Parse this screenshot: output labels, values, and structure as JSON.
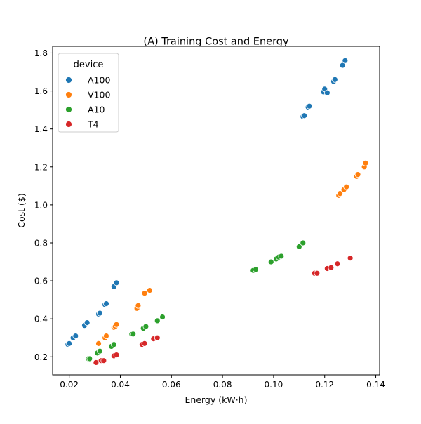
{
  "chart_data": {
    "type": "scatter",
    "title": "(A) Training Cost and Energy",
    "xlabel": "Energy (kW·h)",
    "ylabel": "Cost ($)",
    "xlim": [
      0.0135,
      0.1415
    ],
    "ylim": [
      0.105,
      1.835
    ],
    "xticks": [
      0.02,
      0.04,
      0.06,
      0.08,
      0.1,
      0.12,
      0.14
    ],
    "xtick_labels": [
      "0.02",
      "0.04",
      "0.06",
      "0.08",
      "0.10",
      "0.12",
      "0.14"
    ],
    "yticks": [
      0.2,
      0.4,
      0.6,
      0.8,
      1.0,
      1.2,
      1.4,
      1.6,
      1.8
    ],
    "ytick_labels": [
      "0.2",
      "0.4",
      "0.6",
      "0.8",
      "1.0",
      "1.2",
      "1.4",
      "1.6",
      "1.8"
    ],
    "grid": false,
    "legend": {
      "title": "device",
      "position": "top-left"
    },
    "series": [
      {
        "name": "A100",
        "color": "#1f77b4",
        "points": [
          [
            0.0195,
            0.265
          ],
          [
            0.02,
            0.27
          ],
          [
            0.0215,
            0.3
          ],
          [
            0.0225,
            0.31
          ],
          [
            0.026,
            0.365
          ],
          [
            0.027,
            0.38
          ],
          [
            0.0315,
            0.425
          ],
          [
            0.032,
            0.43
          ],
          [
            0.034,
            0.475
          ],
          [
            0.0345,
            0.48
          ],
          [
            0.0375,
            0.57
          ],
          [
            0.0385,
            0.59
          ],
          [
            0.1115,
            1.465
          ],
          [
            0.112,
            1.47
          ],
          [
            0.1135,
            1.515
          ],
          [
            0.114,
            1.52
          ],
          [
            0.1195,
            1.595
          ],
          [
            0.12,
            1.61
          ],
          [
            0.121,
            1.59
          ],
          [
            0.1235,
            1.65
          ],
          [
            0.124,
            1.66
          ],
          [
            0.127,
            1.735
          ],
          [
            0.128,
            1.76
          ]
        ]
      },
      {
        "name": "V100",
        "color": "#ff7f0e",
        "points": [
          [
            0.0315,
            0.27
          ],
          [
            0.034,
            0.3
          ],
          [
            0.0345,
            0.31
          ],
          [
            0.0375,
            0.355
          ],
          [
            0.038,
            0.36
          ],
          [
            0.0385,
            0.37
          ],
          [
            0.0465,
            0.455
          ],
          [
            0.047,
            0.47
          ],
          [
            0.0495,
            0.535
          ],
          [
            0.0515,
            0.55
          ],
          [
            0.1255,
            1.05
          ],
          [
            0.126,
            1.06
          ],
          [
            0.1275,
            1.08
          ],
          [
            0.1285,
            1.095
          ],
          [
            0.1325,
            1.15
          ],
          [
            0.133,
            1.16
          ],
          [
            0.1355,
            1.2
          ],
          [
            0.136,
            1.22
          ]
        ]
      },
      {
        "name": "A10",
        "color": "#2ca02c",
        "points": [
          [
            0.0275,
            0.19
          ],
          [
            0.028,
            0.19
          ],
          [
            0.031,
            0.22
          ],
          [
            0.032,
            0.23
          ],
          [
            0.0365,
            0.255
          ],
          [
            0.0375,
            0.265
          ],
          [
            0.0445,
            0.32
          ],
          [
            0.045,
            0.32
          ],
          [
            0.049,
            0.35
          ],
          [
            0.05,
            0.36
          ],
          [
            0.0545,
            0.39
          ],
          [
            0.0565,
            0.41
          ],
          [
            0.092,
            0.655
          ],
          [
            0.093,
            0.66
          ],
          [
            0.099,
            0.7
          ],
          [
            0.101,
            0.715
          ],
          [
            0.102,
            0.725
          ],
          [
            0.103,
            0.73
          ],
          [
            0.11,
            0.78
          ],
          [
            0.1115,
            0.8
          ]
        ]
      },
      {
        "name": "T4",
        "color": "#d62728",
        "points": [
          [
            0.0305,
            0.17
          ],
          [
            0.0325,
            0.18
          ],
          [
            0.0335,
            0.18
          ],
          [
            0.0375,
            0.205
          ],
          [
            0.0385,
            0.21
          ],
          [
            0.0485,
            0.265
          ],
          [
            0.0495,
            0.27
          ],
          [
            0.053,
            0.295
          ],
          [
            0.0545,
            0.3
          ],
          [
            0.116,
            0.64
          ],
          [
            0.117,
            0.64
          ],
          [
            0.121,
            0.665
          ],
          [
            0.1225,
            0.67
          ],
          [
            0.125,
            0.69
          ],
          [
            0.13,
            0.72
          ]
        ]
      }
    ]
  }
}
